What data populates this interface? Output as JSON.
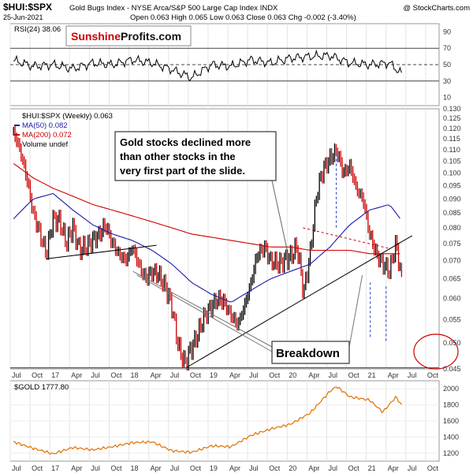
{
  "header": {
    "symbol": "$HUI:$SPX",
    "description": "Gold Bugs Index - NYSE Arca/S&P 500 Large Cap Index  INDX",
    "date": "25-Jun-2021",
    "ohlc": "Open 0.063  High 0.065  Low 0.063  Close 0.063  Chg -0.002 (-3.40%)",
    "watermark": "@ StockCharts.com"
  },
  "brand": {
    "part1": "Sunshine",
    "part2": "Profits.com"
  },
  "colors": {
    "price_up": "#000000",
    "price_down": "#cc0000",
    "ma50": "#1a1aa8",
    "ma200": "#cc0000",
    "trendline": "#000000",
    "projection": "#2233cc",
    "gold": "#e07000",
    "rsi": "#000000",
    "callout_circle": "#cc0000"
  },
  "chart_data": [
    {
      "type": "line",
      "panel": "rsi",
      "legend": "RSI(24) 38.06",
      "ylim": [
        0,
        100
      ],
      "y_ticks": [
        10,
        30,
        50,
        70,
        90
      ],
      "reference_lines": [
        30,
        50,
        70
      ],
      "x": [
        "2016-07",
        "2016-10",
        "2017-01",
        "2017-04",
        "2017-07",
        "2017-10",
        "2018-01",
        "2018-04",
        "2018-07",
        "2018-10",
        "2019-01",
        "2019-04",
        "2019-07",
        "2019-10",
        "2020-01",
        "2020-04",
        "2020-07",
        "2020-10",
        "2021-01",
        "2021-04",
        "2021-06"
      ],
      "values": [
        55,
        48,
        50,
        45,
        52,
        50,
        56,
        52,
        44,
        34,
        50,
        48,
        56,
        52,
        58,
        60,
        61,
        52,
        50,
        52,
        38
      ]
    },
    {
      "type": "line",
      "panel": "main",
      "title": "$HUI:$SPX (Weekly) 0.063",
      "y_scale": "log",
      "ylim": [
        0.045,
        0.13
      ],
      "y_ticks": [
        0.045,
        0.05,
        0.055,
        0.06,
        0.065,
        0.07,
        0.075,
        0.08,
        0.085,
        0.09,
        0.095,
        0.1,
        0.105,
        0.11,
        0.115,
        0.12,
        0.125,
        0.13
      ],
      "x_labels": [
        "Jul",
        "Oct",
        "17",
        "Apr",
        "Jul",
        "Oct",
        "18",
        "Apr",
        "Jul",
        "Oct",
        "19",
        "Apr",
        "Jul",
        "Oct",
        "20",
        "Apr",
        "Jul",
        "Oct",
        "21",
        "Apr",
        "Jul",
        "Oct"
      ],
      "legend": [
        "$HUI:$SPX (Weekly) 0.063",
        "MA(50) 0.082",
        "MA(200) 0.072",
        "Volume undef"
      ],
      "series": [
        {
          "name": "$HUI:$SPX (Weekly) 0.063",
          "x": [
            "2016-07",
            "2016-08",
            "2016-09",
            "2016-10",
            "2016-11",
            "2016-12",
            "2017-01",
            "2017-02",
            "2017-03",
            "2017-04",
            "2017-05",
            "2017-06",
            "2017-07",
            "2017-08",
            "2017-09",
            "2017-10",
            "2017-11",
            "2017-12",
            "2018-01",
            "2018-02",
            "2018-03",
            "2018-04",
            "2018-05",
            "2018-06",
            "2018-07",
            "2018-08",
            "2018-09",
            "2018-10",
            "2018-11",
            "2018-12",
            "2019-01",
            "2019-02",
            "2019-03",
            "2019-04",
            "2019-05",
            "2019-06",
            "2019-07",
            "2019-08",
            "2019-09",
            "2019-10",
            "2019-11",
            "2019-12",
            "2020-01",
            "2020-02",
            "2020-03",
            "2020-04",
            "2020-05",
            "2020-06",
            "2020-07",
            "2020-08",
            "2020-09",
            "2020-10",
            "2020-11",
            "2020-12",
            "2021-01",
            "2021-02",
            "2021-03",
            "2021-04",
            "2021-05",
            "2021-06"
          ],
          "values": [
            0.118,
            0.11,
            0.098,
            0.085,
            0.078,
            0.072,
            0.083,
            0.082,
            0.075,
            0.08,
            0.073,
            0.074,
            0.076,
            0.078,
            0.081,
            0.075,
            0.072,
            0.07,
            0.074,
            0.069,
            0.065,
            0.067,
            0.066,
            0.063,
            0.058,
            0.049,
            0.046,
            0.049,
            0.052,
            0.056,
            0.058,
            0.06,
            0.059,
            0.056,
            0.054,
            0.058,
            0.064,
            0.072,
            0.074,
            0.07,
            0.069,
            0.07,
            0.071,
            0.074,
            0.061,
            0.072,
            0.092,
            0.102,
            0.106,
            0.11,
            0.1,
            0.103,
            0.094,
            0.09,
            0.078,
            0.072,
            0.069,
            0.067,
            0.075,
            0.063
          ]
        },
        {
          "name": "MA(50) 0.082",
          "x": [
            "2016-07",
            "2016-10",
            "2017-01",
            "2017-04",
            "2017-07",
            "2017-10",
            "2018-01",
            "2018-04",
            "2018-07",
            "2018-10",
            "2019-01",
            "2019-04",
            "2019-07",
            "2019-10",
            "2020-01",
            "2020-04",
            "2020-07",
            "2020-10",
            "2021-01",
            "2021-04",
            "2021-06"
          ],
          "values": [
            0.083,
            0.09,
            0.092,
            0.086,
            0.081,
            0.078,
            0.076,
            0.073,
            0.069,
            0.064,
            0.061,
            0.059,
            0.062,
            0.065,
            0.067,
            0.069,
            0.074,
            0.081,
            0.086,
            0.088,
            0.082
          ]
        },
        {
          "name": "MA(200) 0.072",
          "x": [
            "2016-07",
            "2016-10",
            "2017-01",
            "2017-04",
            "2017-07",
            "2017-10",
            "2018-01",
            "2018-04",
            "2018-07",
            "2018-10",
            "2019-01",
            "2019-04",
            "2019-07",
            "2019-10",
            "2020-01",
            "2020-04",
            "2020-07",
            "2020-10",
            "2021-01",
            "2021-04",
            "2021-06"
          ],
          "values": [
            0.104,
            0.098,
            0.094,
            0.091,
            0.088,
            0.086,
            0.084,
            0.082,
            0.08,
            0.078,
            0.077,
            0.076,
            0.075,
            0.074,
            0.074,
            0.073,
            0.073,
            0.073,
            0.072,
            0.072,
            0.072
          ]
        }
      ],
      "annotations": [
        {
          "text": [
            "Gold stocks declined more",
            "than other stocks in the",
            "very first part of the slide."
          ]
        },
        {
          "text": [
            "Breakdown"
          ]
        }
      ]
    },
    {
      "type": "line",
      "panel": "gold",
      "legend": "$GOLD 1777.80",
      "ylim": [
        1100,
        2100
      ],
      "y_ticks": [
        1200,
        1400,
        1600,
        1800,
        2000
      ],
      "x_labels": [
        "Jul",
        "Oct",
        "17",
        "Apr",
        "Jul",
        "Oct",
        "18",
        "Apr",
        "Jul",
        "Oct",
        "19",
        "Apr",
        "Jul",
        "Oct",
        "20",
        "Apr",
        "Jul",
        "Oct",
        "21",
        "Apr",
        "Jul",
        "Oct"
      ],
      "series": [
        {
          "name": "$GOLD 1777.80",
          "x": [
            "2016-07",
            "2016-10",
            "2017-01",
            "2017-04",
            "2017-07",
            "2017-10",
            "2018-01",
            "2018-04",
            "2018-07",
            "2018-10",
            "2019-01",
            "2019-04",
            "2019-07",
            "2019-10",
            "2020-01",
            "2020-04",
            "2020-07",
            "2020-08",
            "2020-10",
            "2021-01",
            "2021-03",
            "2021-05",
            "2021-06"
          ],
          "values": [
            1340,
            1260,
            1190,
            1270,
            1240,
            1280,
            1330,
            1340,
            1230,
            1210,
            1290,
            1280,
            1420,
            1500,
            1560,
            1700,
            1970,
            2030,
            1900,
            1860,
            1710,
            1900,
            1778
          ]
        }
      ]
    }
  ]
}
